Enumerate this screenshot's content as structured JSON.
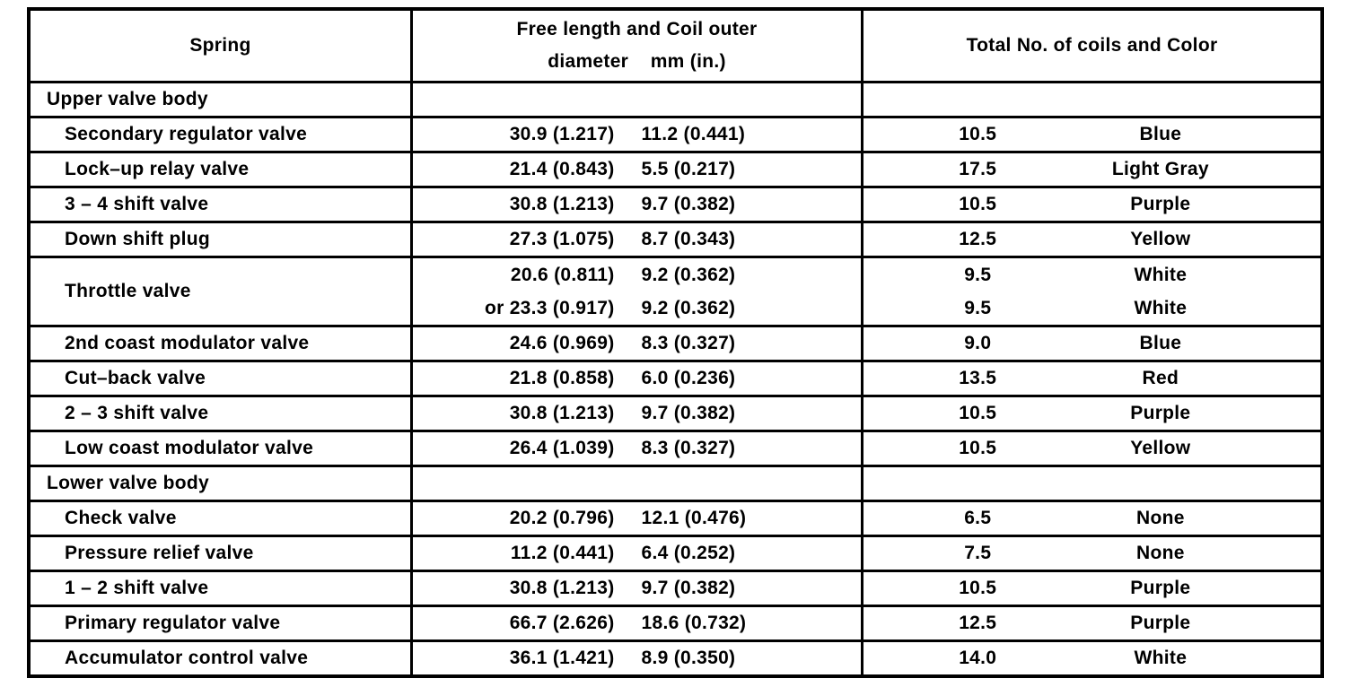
{
  "table": {
    "border_color": "#000000",
    "text_color": "#000000",
    "background_color": "#ffffff",
    "header": {
      "spring": "Spring",
      "free_length_line1": "Free length and Coil outer",
      "free_length_line2": "diameter    mm (in.)",
      "coils_and_color": "Total No. of coils and Color"
    },
    "rows": [
      {
        "type": "section",
        "spring": "Upper valve body"
      },
      {
        "type": "data",
        "spring": "Secondary regulator valve",
        "free_length": "30.9 (1.217)",
        "coil_diameter": "11.2 (0.441)",
        "coils": "10.5",
        "color": "Blue"
      },
      {
        "type": "data",
        "spring": "Lock–up relay valve",
        "free_length": "21.4 (0.843)",
        "coil_diameter": "5.5 (0.217)",
        "coils": "17.5",
        "color": "Light Gray"
      },
      {
        "type": "data",
        "spring": "3 – 4 shift valve",
        "free_length": "30.8 (1.213)",
        "coil_diameter": "9.7 (0.382)",
        "coils": "10.5",
        "color": "Purple"
      },
      {
        "type": "data",
        "spring": "Down shift plug",
        "free_length": "27.3 (1.075)",
        "coil_diameter": "8.7 (0.343)",
        "coils": "12.5",
        "color": "Yellow"
      },
      {
        "type": "double",
        "spring": "Throttle valve",
        "lines": [
          {
            "free_length": "20.6 (0.811)",
            "coil_diameter": "9.2 (0.362)",
            "coils": "9.5",
            "color": "White"
          },
          {
            "free_length": "or 23.3 (0.917)",
            "coil_diameter": "9.2 (0.362)",
            "coils": "9.5",
            "color": "White"
          }
        ]
      },
      {
        "type": "data",
        "spring": "2nd coast modulator valve",
        "free_length": "24.6 (0.969)",
        "coil_diameter": "8.3 (0.327)",
        "coils": "9.0",
        "color": "Blue"
      },
      {
        "type": "data",
        "spring": "Cut–back valve",
        "free_length": "21.8 (0.858)",
        "coil_diameter": "6.0 (0.236)",
        "coils": "13.5",
        "color": "Red"
      },
      {
        "type": "data",
        "spring": "2 – 3 shift valve",
        "free_length": "30.8 (1.213)",
        "coil_diameter": "9.7 (0.382)",
        "coils": "10.5",
        "color": "Purple"
      },
      {
        "type": "data",
        "spring": "Low coast modulator valve",
        "free_length": "26.4 (1.039)",
        "coil_diameter": "8.3 (0.327)",
        "coils": "10.5",
        "color": "Yellow"
      },
      {
        "type": "section",
        "spring": "Lower valve body"
      },
      {
        "type": "data",
        "spring": "Check valve",
        "free_length": "20.2 (0.796)",
        "coil_diameter": "12.1 (0.476)",
        "coils": "6.5",
        "color": "None"
      },
      {
        "type": "data",
        "spring": "Pressure relief valve",
        "free_length": "11.2 (0.441)",
        "coil_diameter": "6.4 (0.252)",
        "coils": "7.5",
        "color": "None"
      },
      {
        "type": "data",
        "spring": "1 – 2 shift valve",
        "free_length": "30.8 (1.213)",
        "coil_diameter": "9.7 (0.382)",
        "coils": "10.5",
        "color": "Purple"
      },
      {
        "type": "data",
        "spring": "Primary regulator valve",
        "free_length": "66.7 (2.626)",
        "coil_diameter": "18.6 (0.732)",
        "coils": "12.5",
        "color": "Purple"
      },
      {
        "type": "data",
        "spring": "Accumulator control valve",
        "free_length": "36.1 (1.421)",
        "coil_diameter": "8.9 (0.350)",
        "coils": "14.0",
        "color": "White"
      }
    ]
  }
}
